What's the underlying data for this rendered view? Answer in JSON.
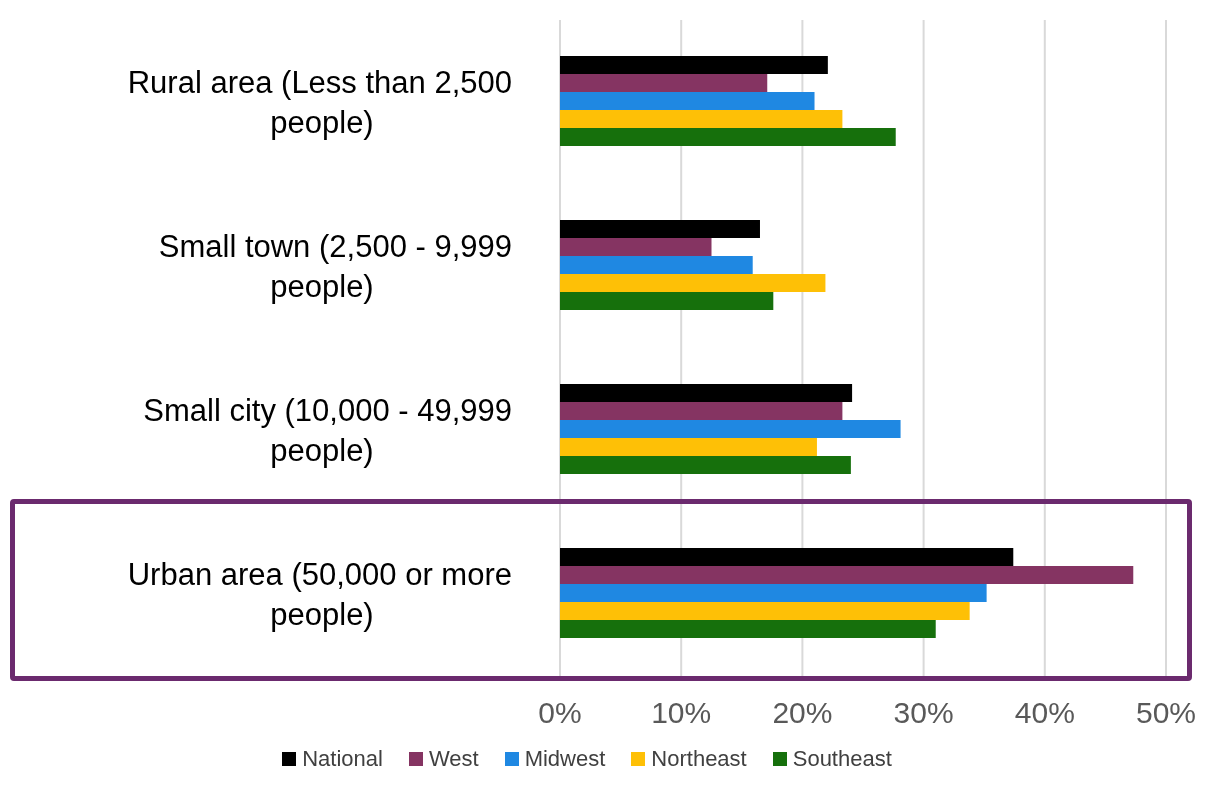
{
  "chart_data": {
    "type": "bar",
    "orientation": "horizontal",
    "categories": [
      "Rural area (Less than 2,500 people)",
      "Small town (2,500 - 9,999 people)",
      "Small city (10,000 - 49,999 people)",
      "Urban area (50,000 or more people)"
    ],
    "series": [
      {
        "name": "National",
        "color": "#000000",
        "values": [
          22.1,
          16.5,
          24.1,
          37.4
        ]
      },
      {
        "name": "West",
        "color": "#853462",
        "values": [
          17.1,
          12.5,
          23.3,
          47.3
        ]
      },
      {
        "name": "Midwest",
        "color": "#1f88e2",
        "values": [
          21.0,
          15.9,
          28.1,
          35.2
        ]
      },
      {
        "name": "Northeast",
        "color": "#fec006",
        "values": [
          23.3,
          21.9,
          21.2,
          33.8
        ]
      },
      {
        "name": "Southeast",
        "color": "#16700c",
        "values": [
          27.7,
          17.6,
          24.0,
          31.0
        ]
      }
    ],
    "xlim": [
      0,
      50
    ],
    "xticks": [
      {
        "value": 0,
        "label": "0%"
      },
      {
        "value": 10,
        "label": "10%"
      },
      {
        "value": 20,
        "label": "20%"
      },
      {
        "value": 30,
        "label": "30%"
      },
      {
        "value": 40,
        "label": "40%"
      },
      {
        "value": 50,
        "label": "50%"
      }
    ],
    "grid": "x",
    "legend": "bottom"
  }
}
